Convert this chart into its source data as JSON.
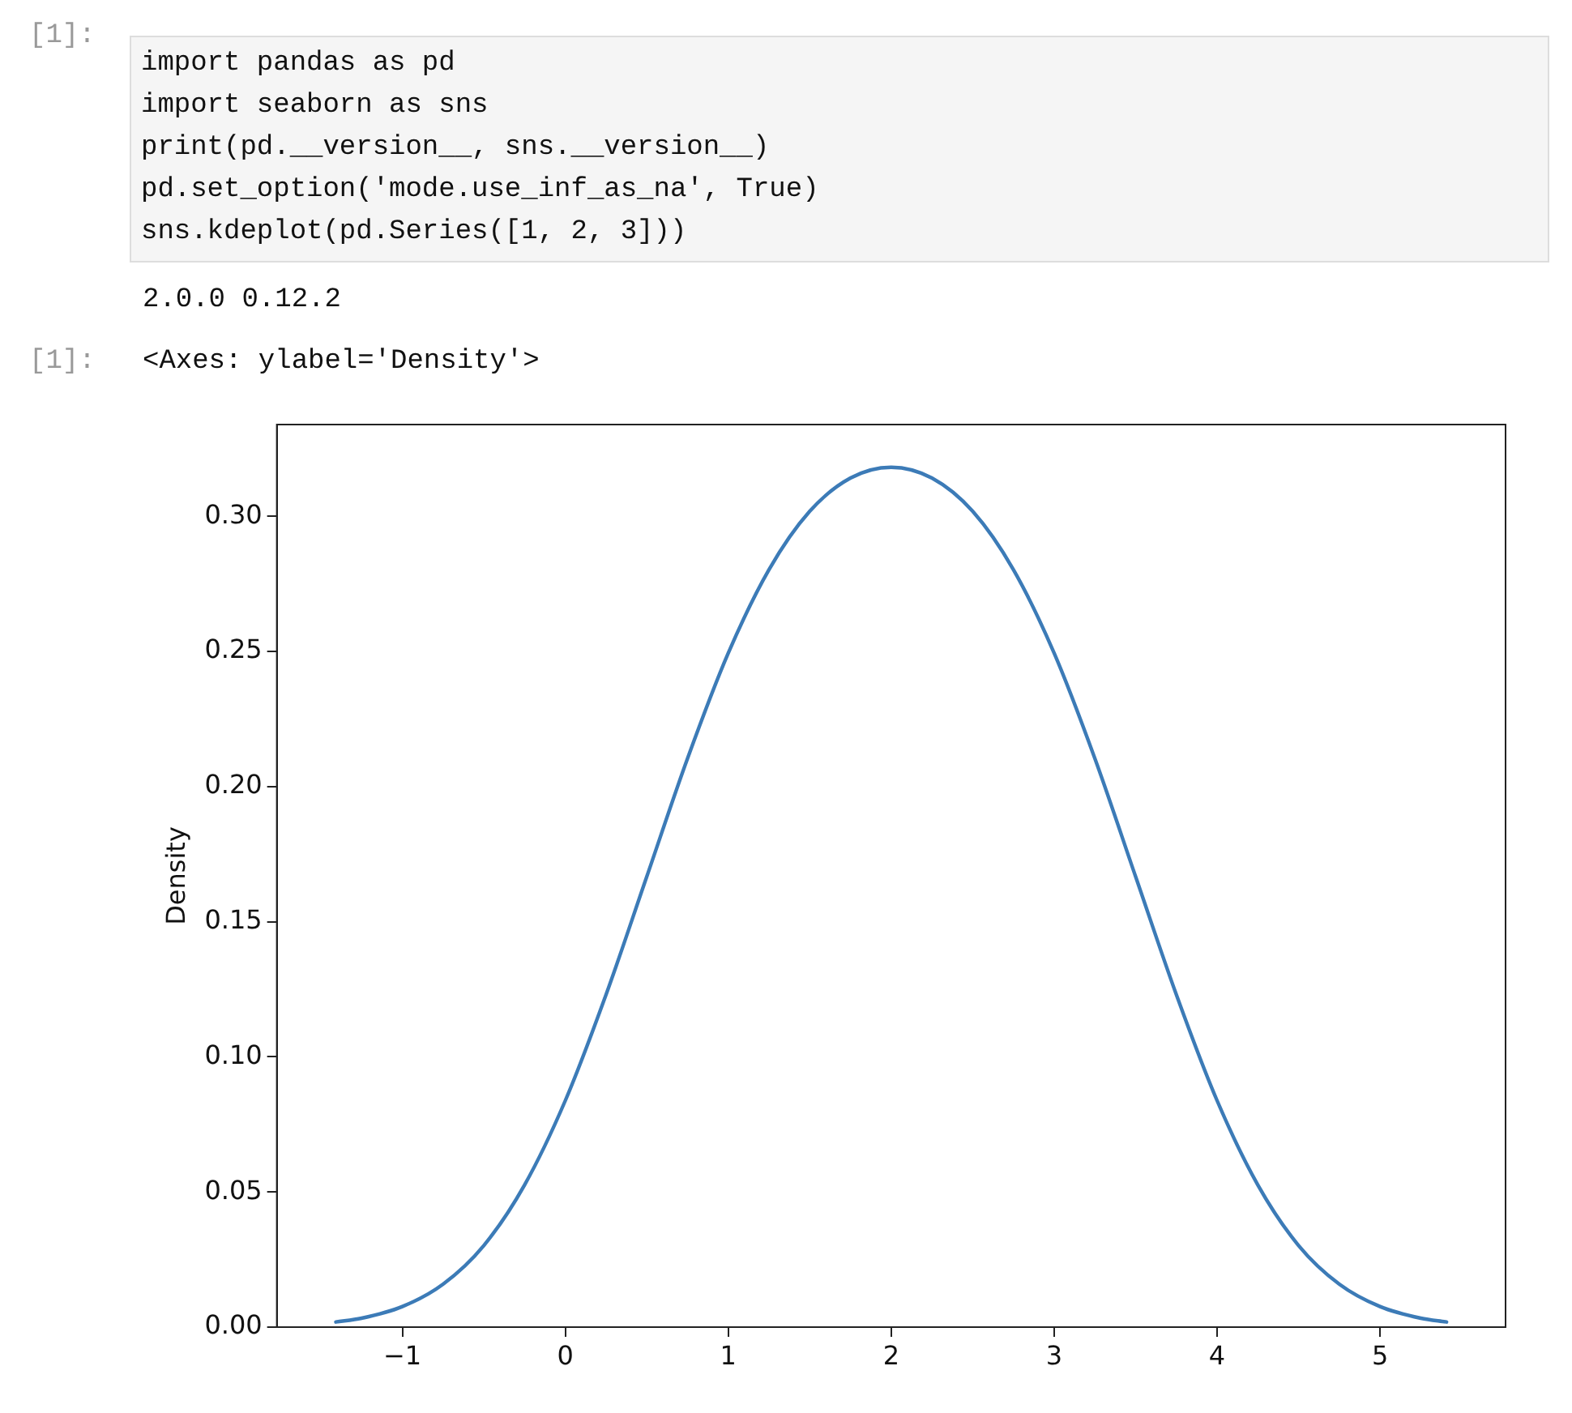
{
  "chart_data": {
    "type": "line",
    "ylabel": "Density",
    "annotations": [
      "[1]:",
      "import pandas as pd\nimport seaborn as sns\nprint(pd.__version__, sns.__version__)\npd.set_option('mode.use_inf_as_na', True)\nsns.kdeplot(pd.Series([1, 2, 3]))",
      "2.0.0 0.12.2",
      "[1]:",
      "<Axes: ylabel='Density'>"
    ],
    "x": [
      -1.408,
      -1.25,
      -1,
      -0.75,
      -0.5,
      -0.25,
      0,
      0.25,
      0.5,
      0.75,
      1,
      1.25,
      1.5,
      1.75,
      2,
      2.25,
      2.5,
      2.75,
      3,
      3.25,
      3.5,
      3.75,
      4,
      4.25,
      4.5,
      4.75,
      5,
      5.25,
      5.408
    ],
    "series": [
      {
        "color": "#3c7bb7",
        "values": [
          0.0019,
          0.0033,
          0.0076,
          0.0159,
          0.0302,
          0.0526,
          0.0838,
          0.123,
          0.1667,
          0.2104,
          0.2494,
          0.2803,
          0.3019,
          0.3142,
          0.3182,
          0.3142,
          0.3019,
          0.2803,
          0.2494,
          0.2104,
          0.1667,
          0.123,
          0.0838,
          0.0526,
          0.0302,
          0.0159,
          0.0076,
          0.0033,
          0.0019
        ]
      }
    ],
    "xlim": [
      -1.77,
      5.77
    ],
    "ylim": [
      0,
      0.334
    ],
    "xticks": [
      {
        "value": -1,
        "label": "−1"
      },
      0,
      1,
      2,
      3,
      4,
      5
    ],
    "yticks": [
      {
        "value": 0,
        "label": "0.00"
      },
      {
        "value": 0.05,
        "label": "0.05"
      },
      {
        "value": 0.1,
        "label": "0.10"
      },
      {
        "value": 0.15,
        "label": "0.15"
      },
      {
        "value": 0.2,
        "label": "0.20"
      },
      {
        "value": 0.25,
        "label": "0.25"
      },
      {
        "value": 0.3,
        "label": "0.30"
      }
    ],
    "grid": false,
    "legend": false,
    "marker": "none",
    "line_style": "solid"
  }
}
